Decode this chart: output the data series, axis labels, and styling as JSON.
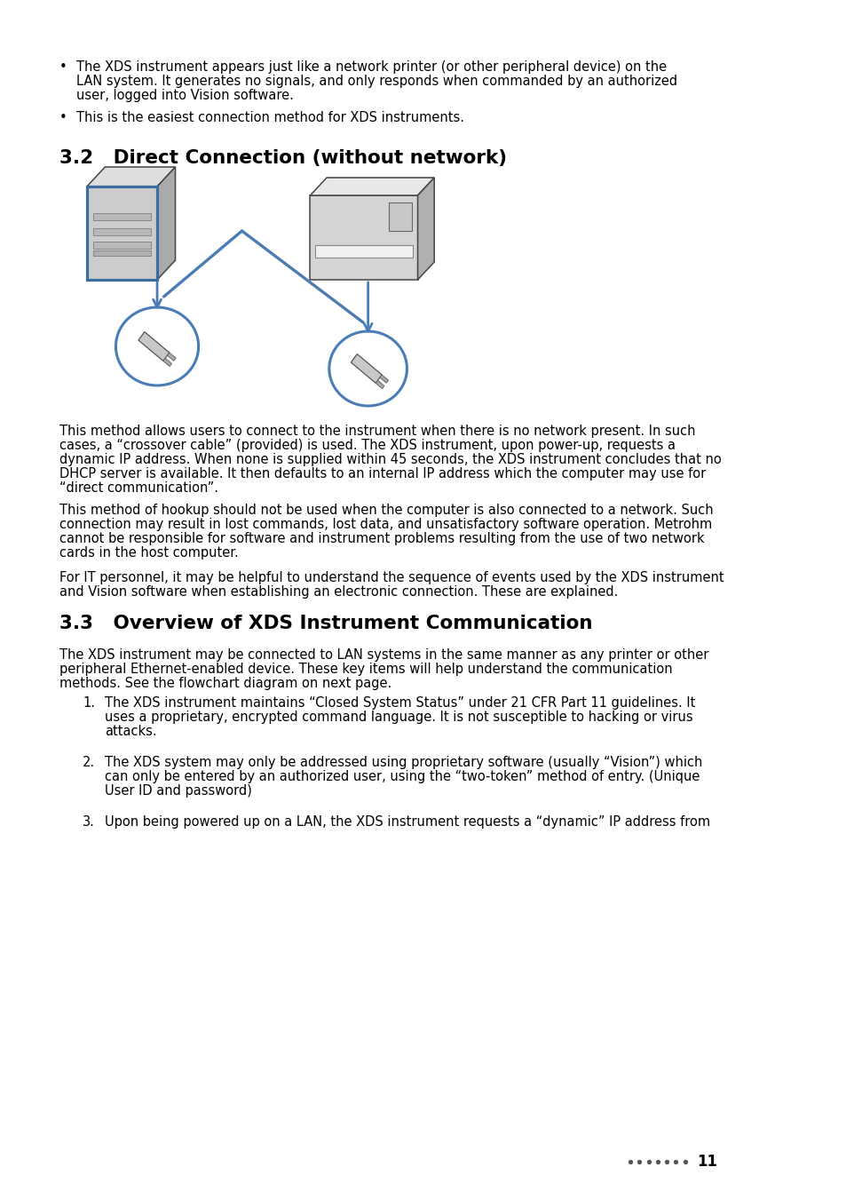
{
  "background_color": "#ffffff",
  "bullet1_text_line1": "The XDS instrument appears just like a network printer (or other peripheral device) on the",
  "bullet1_text_line2": "LAN system. It generates no signals, and only responds when commanded by an authorized",
  "bullet1_text_line3": "user, logged into Vision software.",
  "bullet2_text": "This is the easiest connection method for XDS instruments.",
  "section32_title": "3.2   Direct Connection (without network)",
  "para1_line1": "This method allows users to connect to the instrument when there is no network present. In such",
  "para1_line2": "cases, a “crossover cable” (provided) is used. The XDS instrument, upon power-up, requests a",
  "para1_line3": "dynamic IP address. When none is supplied within 45 seconds, the XDS instrument concludes that no",
  "para1_line4": "DHCP server is available. It then defaults to an internal IP address which the computer may use for",
  "para1_line5": "“direct communication”.",
  "para2_line1": "This method of hookup should not be used when the computer is also connected to a network. Such",
  "para2_line2": "connection may result in lost commands, lost data, and unsatisfactory software operation. Metrohm",
  "para2_line3": "cannot be responsible for software and instrument problems resulting from the use of two network",
  "para2_line4": "cards in the host computer.",
  "para3_line1": "For IT personnel, it may be helpful to understand the sequence of events used by the XDS instrument",
  "para3_line2": "and Vision software when establishing an electronic connection. These are explained.",
  "section33_title": "3.3   Overview of XDS Instrument Communication",
  "section33_body_line1": "The XDS instrument may be connected to LAN systems in the same manner as any printer or other",
  "section33_body_line2": "peripheral Ethernet-enabled device. These key items will help understand the communication",
  "section33_body_line3": "methods. See the flowchart diagram on next page.",
  "item1_line1": "The XDS instrument maintains “Closed System Status” under 21 CFR Part 11 guidelines. It",
  "item1_line2": "uses a proprietary, encrypted command language. It is not susceptible to hacking or virus",
  "item1_line3": "attacks.",
  "item2_line1": "The XDS system may only be addressed using proprietary software (usually “Vision”) which",
  "item2_line2": "can only be entered by an authorized user, using the “two-token” method of entry. (Unique",
  "item2_line3": "User ID and password)",
  "item3_line1": "Upon being powered up on a LAN, the XDS instrument requests a “dynamic” IP address from",
  "page_number": "11",
  "arrow_color": "#4a7cb5",
  "circle_color": "#4a7cb5",
  "dots_color": "#555555"
}
